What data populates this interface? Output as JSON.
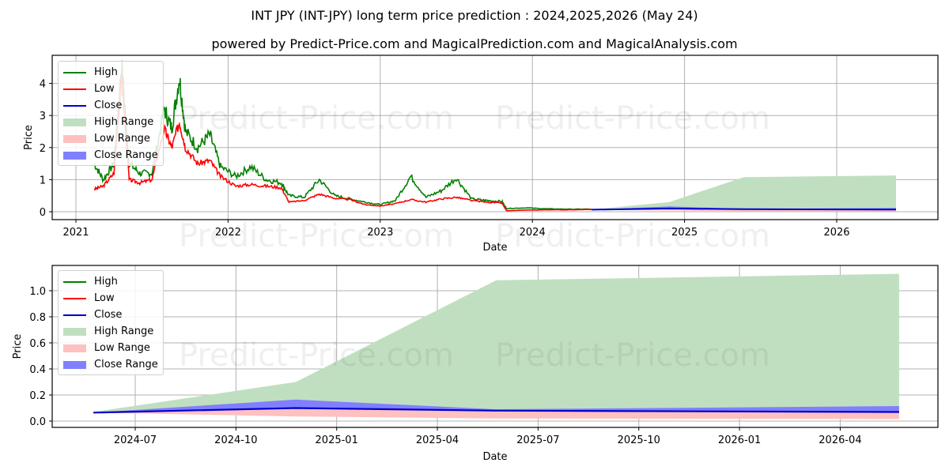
{
  "title": "INT JPY (INT-JPY) long term price prediction : 2024,2025,2026 (May 24)",
  "subtitle": "powered by Predict-Price.com and MagicalPrediction.com and MagicalAnalysis.com",
  "watermark": "Predict-Price.com",
  "colors": {
    "high": "#008000",
    "low": "#ff0000",
    "close": "#0000cc",
    "high_range": "#c0dfc0",
    "low_range": "#ffc0c0",
    "close_range": "#8080ff"
  },
  "legend": [
    "High",
    "Low",
    "Close",
    "High Range",
    "Low Range",
    "Close Range"
  ],
  "chart_data": [
    {
      "type": "line",
      "title": "INT JPY (INT-JPY) long term price prediction : 2024,2025,2026 (May 24)",
      "xlabel": "Date",
      "ylabel": "Price",
      "xticks": [
        "2021",
        "2022",
        "2023",
        "2024",
        "2025",
        "2026"
      ],
      "yticks": [
        "0",
        "1",
        "2",
        "3",
        "4"
      ],
      "ylim": [
        -0.25,
        4.85
      ],
      "grid": true,
      "legend_position": "upper left",
      "history": {
        "x": [
          2021.12,
          2021.18,
          2021.25,
          2021.3,
          2021.35,
          2021.42,
          2021.5,
          2021.58,
          2021.63,
          2021.68,
          2021.72,
          2021.8,
          2021.88,
          2021.95,
          2022.05,
          2022.15,
          2022.25,
          2022.35,
          2022.4,
          2022.5,
          2022.6,
          2022.7,
          2022.8,
          2022.9,
          2023.0,
          2023.1,
          2023.2,
          2023.3,
          2023.4,
          2023.5,
          2023.6,
          2023.7,
          2023.8,
          2023.83,
          2023.95,
          2024.1,
          2024.25,
          2024.39
        ],
        "high": [
          1.5,
          1.0,
          1.5,
          4.6,
          1.5,
          1.2,
          1.2,
          3.2,
          2.6,
          4.2,
          2.5,
          2.0,
          2.4,
          1.4,
          1.1,
          1.4,
          1.0,
          0.9,
          0.5,
          0.45,
          1.0,
          0.5,
          0.4,
          0.3,
          0.22,
          0.35,
          1.1,
          0.45,
          0.65,
          1.05,
          0.4,
          0.35,
          0.32,
          0.1,
          0.12,
          0.09,
          0.08,
          0.08
        ],
        "low": [
          0.7,
          0.8,
          1.2,
          4.2,
          1.0,
          0.9,
          1.0,
          2.6,
          2.0,
          2.8,
          2.0,
          1.5,
          1.6,
          1.1,
          0.8,
          0.85,
          0.8,
          0.75,
          0.3,
          0.35,
          0.55,
          0.42,
          0.38,
          0.22,
          0.18,
          0.25,
          0.38,
          0.3,
          0.4,
          0.45,
          0.35,
          0.3,
          0.27,
          0.03,
          0.05,
          0.06,
          0.06,
          0.07
        ]
      },
      "forecast": {
        "x": [
          2024.39,
          2024.9,
          2025.39,
          2026.39
        ],
        "high_range_top": [
          0.07,
          0.3,
          1.08,
          1.13
        ],
        "close": [
          0.065,
          0.1,
          0.08,
          0.07
        ],
        "close_range_top": [
          0.065,
          0.165,
          0.09,
          0.115
        ],
        "low_range_bottom": [
          0.065,
          0.035,
          0.02,
          0.015
        ]
      }
    },
    {
      "type": "area",
      "xlabel": "Date",
      "ylabel": "Price",
      "xticks": [
        "2024-07",
        "2024-10",
        "2025-01",
        "2025-04",
        "2025-07",
        "2025-10",
        "2026-01",
        "2026-04"
      ],
      "yticks": [
        "0.0",
        "0.2",
        "0.4",
        "0.6",
        "0.8",
        "1.0"
      ],
      "ylim": [
        -0.05,
        1.19
      ],
      "grid": true,
      "legend_position": "upper left",
      "x": [
        "2024-05-24",
        "2024-11-25",
        "2025-05-24",
        "2026-05-24"
      ],
      "series": [
        {
          "name": "High Range",
          "values": [
            0.07,
            0.3,
            1.08,
            1.13
          ]
        },
        {
          "name": "Close Range (top)",
          "values": [
            0.065,
            0.165,
            0.09,
            0.115
          ]
        },
        {
          "name": "Close",
          "values": [
            0.065,
            0.1,
            0.08,
            0.07
          ]
        },
        {
          "name": "Low Range (bottom)",
          "values": [
            0.065,
            0.035,
            0.02,
            0.015
          ]
        }
      ]
    }
  ]
}
